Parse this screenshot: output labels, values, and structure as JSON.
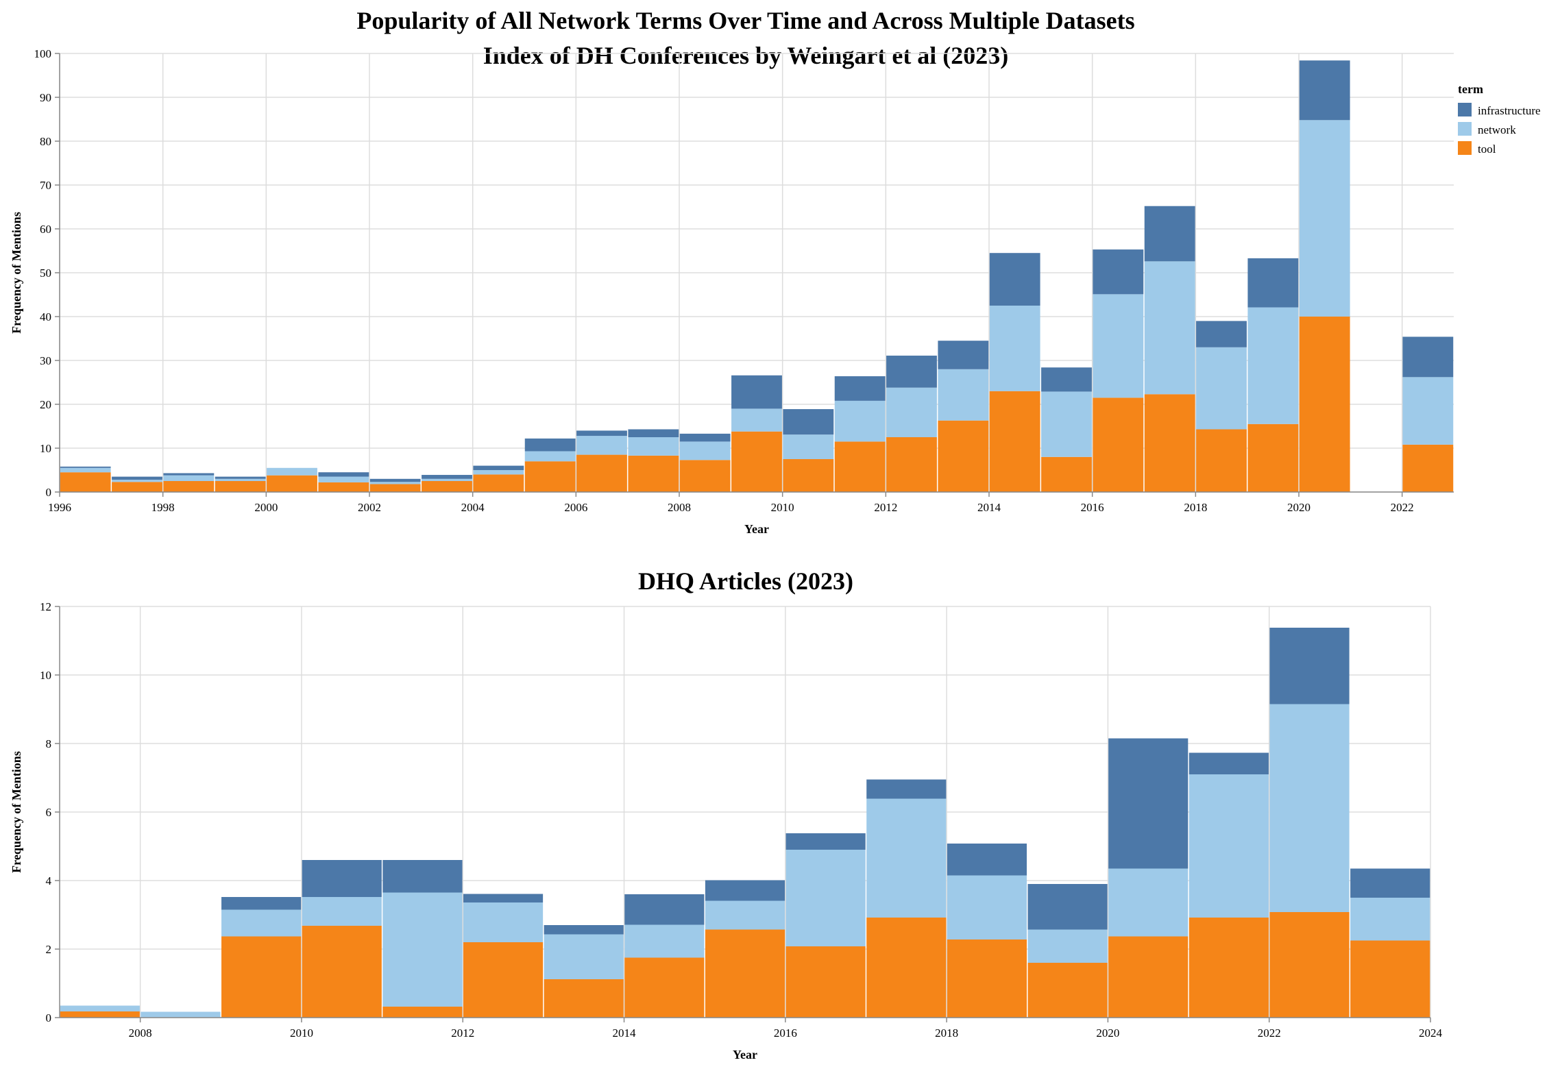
{
  "colors": {
    "infrastructure": "#4c78a8",
    "network": "#9ecae9",
    "tool": "#f58518"
  },
  "legend": {
    "title": "term",
    "items": [
      "infrastructure",
      "network",
      "tool"
    ]
  },
  "chart_data": [
    {
      "type": "bar",
      "stacked": true,
      "title": "Popularity of All Network Terms Over Time and Across Multiple Datasets",
      "subtitle": "Index of DH Conferences by Weingart et al (2023)",
      "xlabel": "Year",
      "ylabel": "Frequency of Mentions",
      "xlim": [
        1996,
        2023
      ],
      "ylim": [
        0,
        100
      ],
      "x_ticks": [
        1996,
        1998,
        2000,
        2002,
        2004,
        2006,
        2008,
        2010,
        2012,
        2014,
        2016,
        2018,
        2020,
        2022
      ],
      "y_ticks": [
        0,
        10,
        20,
        30,
        40,
        50,
        60,
        70,
        80,
        90,
        100
      ],
      "grid": true,
      "bin_width_years": 1,
      "x": [
        1996,
        1997,
        1998,
        1999,
        2000,
        2001,
        2002,
        2003,
        2004,
        2005,
        2006,
        2007,
        2008,
        2009,
        2010,
        2011,
        2012,
        2013,
        2014,
        2015,
        2016,
        2017,
        2018,
        2019,
        2020,
        2021,
        2022
      ],
      "series": [
        {
          "name": "tool",
          "values": [
            4.5,
            2.3,
            2.5,
            2.5,
            3.8,
            2.2,
            1.8,
            2.5,
            4,
            7,
            8.5,
            8.3,
            7.3,
            13.8,
            7.5,
            11.5,
            12.5,
            16.3,
            23,
            8,
            21.5,
            22.3,
            14.3,
            15.5,
            40,
            0,
            10.8
          ]
        },
        {
          "name": "network",
          "values": [
            1.0,
            0.5,
            1.3,
            0.5,
            1.7,
            1.3,
            0.5,
            0.5,
            1.0,
            2.3,
            4.3,
            4.2,
            4.2,
            5.2,
            5.6,
            9.3,
            11.3,
            11.7,
            19.5,
            14.9,
            23.6,
            30.3,
            18.7,
            26.6,
            44.8,
            0,
            15.4
          ]
        },
        {
          "name": "infrastructure",
          "values": [
            0.3,
            0.7,
            0.5,
            0.5,
            0,
            1.0,
            0.7,
            0.9,
            1.0,
            2.9,
            1.2,
            1.8,
            1.8,
            7.6,
            5.8,
            5.6,
            7.3,
            6.5,
            12.0,
            5.5,
            10.2,
            12.6,
            6.0,
            11.2,
            13.6,
            0,
            9.2
          ]
        }
      ]
    },
    {
      "type": "bar",
      "stacked": true,
      "title": "DHQ Articles (2023)",
      "xlabel": "Year",
      "ylabel": "Frequency of Mentions",
      "xlim": [
        2007,
        2024
      ],
      "ylim": [
        0,
        12
      ],
      "x_ticks": [
        2008,
        2010,
        2012,
        2014,
        2016,
        2018,
        2020,
        2022,
        2024
      ],
      "y_ticks": [
        0,
        2,
        4,
        6,
        8,
        10,
        12
      ],
      "grid": true,
      "bin_width_years": 1,
      "x": [
        2007,
        2008,
        2009,
        2010,
        2011,
        2012,
        2013,
        2014,
        2015,
        2016,
        2017,
        2018,
        2019,
        2020,
        2021,
        2022,
        2023
      ],
      "series": [
        {
          "name": "tool",
          "values": [
            0.18,
            0,
            2.37,
            2.68,
            0.32,
            2.2,
            1.12,
            1.75,
            2.57,
            2.08,
            2.92,
            2.28,
            1.6,
            2.37,
            2.92,
            3.08,
            2.25
          ]
        },
        {
          "name": "network",
          "values": [
            0.17,
            0.17,
            0.78,
            0.84,
            3.33,
            1.16,
            1.31,
            0.96,
            0.84,
            2.82,
            3.47,
            1.87,
            0.97,
            1.98,
            4.18,
            6.07,
            1.25
          ]
        },
        {
          "name": "infrastructure",
          "values": [
            0,
            0,
            0.37,
            1.08,
            0.95,
            0.25,
            0.27,
            0.89,
            0.6,
            0.48,
            0.56,
            0.93,
            1.33,
            3.8,
            0.63,
            2.23,
            0.85
          ]
        }
      ]
    }
  ]
}
